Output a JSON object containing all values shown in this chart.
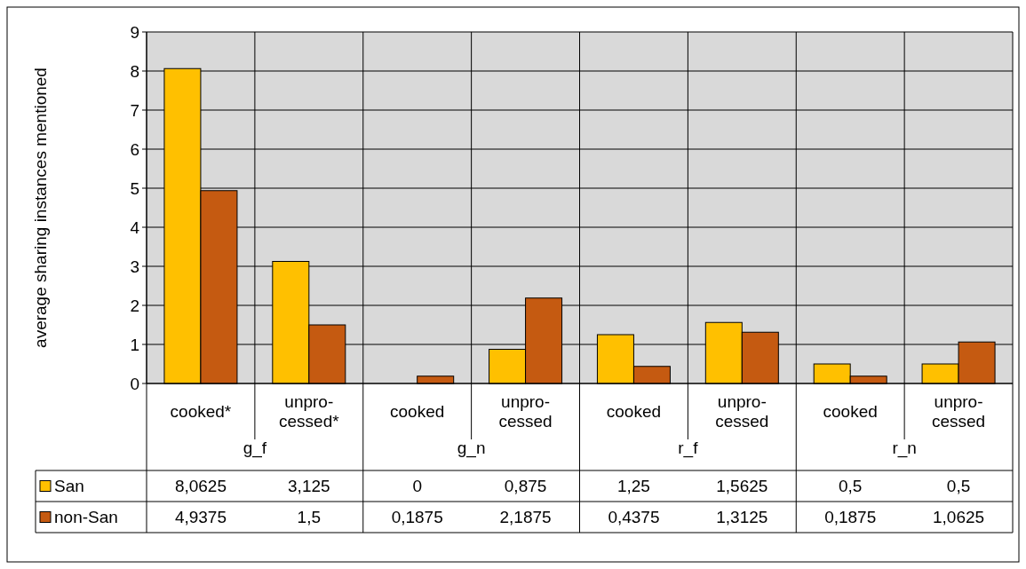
{
  "chart_data": {
    "type": "bar",
    "ylabel": "average sharing instances mentioned",
    "categories": [
      "cooked*",
      "unpro-\ncessed*",
      "cooked",
      "unpro-\ncessed",
      "cooked",
      "unpro-\ncessed",
      "cooked",
      "unpro-\ncessed"
    ],
    "annotations": [
      "g_f",
      "g_n",
      "r_f",
      "r_n"
    ],
    "series": [
      {
        "name": "San",
        "color": "#ffc000",
        "values": [
          8.0625,
          3.125,
          0,
          0.875,
          1.25,
          1.5625,
          0.5,
          0.5
        ],
        "value_labels": [
          "8,0625",
          "3,125",
          "0",
          "0,875",
          "1,25",
          "1,5625",
          "0,5",
          "0,5"
        ]
      },
      {
        "name": "non-San",
        "color": "#c55a11",
        "values": [
          4.9375,
          1.5,
          0.1875,
          2.1875,
          0.4375,
          1.3125,
          0.1875,
          1.0625
        ],
        "value_labels": [
          "4,9375",
          "1,5",
          "0,1875",
          "2,1875",
          "0,4375",
          "1,3125",
          "0,1875",
          "1,0625"
        ]
      }
    ],
    "ylim": [
      0,
      9
    ],
    "yticks": [
      0,
      1,
      2,
      3,
      4,
      5,
      6,
      7,
      8,
      9
    ],
    "grid": "y",
    "legend": "bottom left"
  }
}
